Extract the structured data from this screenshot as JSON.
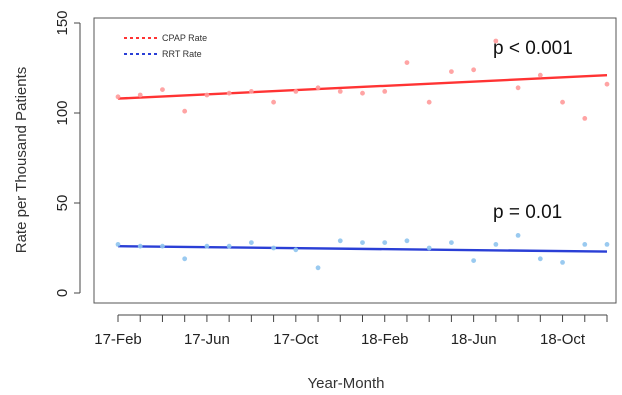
{
  "chart_data": {
    "type": "scatter",
    "xlabel": "Year-Month",
    "ylabel": "Rate per Thousand Patients",
    "ylim": [
      0,
      150
    ],
    "y_ticks": [
      "0",
      "50",
      "100",
      "150"
    ],
    "x_ticks": [
      "17-Feb",
      "17-Jun",
      "17-Oct",
      "18-Feb",
      "18-Jun",
      "18-Oct"
    ],
    "x": [
      "17-Feb",
      "17-Mar",
      "17-Apr",
      "17-May",
      "17-Jun",
      "17-Jul",
      "17-Aug",
      "17-Sep",
      "17-Oct",
      "17-Nov",
      "17-Dec",
      "18-Jan",
      "18-Feb",
      "18-Mar",
      "18-Apr",
      "18-May",
      "18-Jun",
      "18-Jul",
      "18-Aug",
      "18-Sep",
      "18-Oct",
      "18-Nov",
      "18-Dec"
    ],
    "grid": false,
    "legend_position": "top-left",
    "series": [
      {
        "name": "CPAP Rate",
        "color": "#ff3333",
        "point_color": "#ff9a9a",
        "values": [
          109,
          110,
          113,
          101,
          110,
          111,
          112,
          106,
          112,
          114,
          112,
          111,
          112,
          128,
          106,
          123,
          124,
          140,
          114,
          121,
          106,
          97,
          116
        ],
        "trend": [
          108,
          121
        ]
      },
      {
        "name": "RRT Rate",
        "color": "#2a3fd6",
        "point_color": "#8fc4ee",
        "values": [
          27,
          26,
          26,
          19,
          26,
          26,
          28,
          25,
          24,
          14,
          29,
          28,
          28,
          29,
          25,
          28,
          18,
          27,
          32,
          19,
          17,
          27,
          27
        ],
        "trend": [
          26,
          23
        ]
      }
    ],
    "annotations": [
      {
        "text": "p < 0.001",
        "series": "CPAP Rate"
      },
      {
        "text": "p = 0.01",
        "series": "RRT Rate"
      }
    ]
  }
}
